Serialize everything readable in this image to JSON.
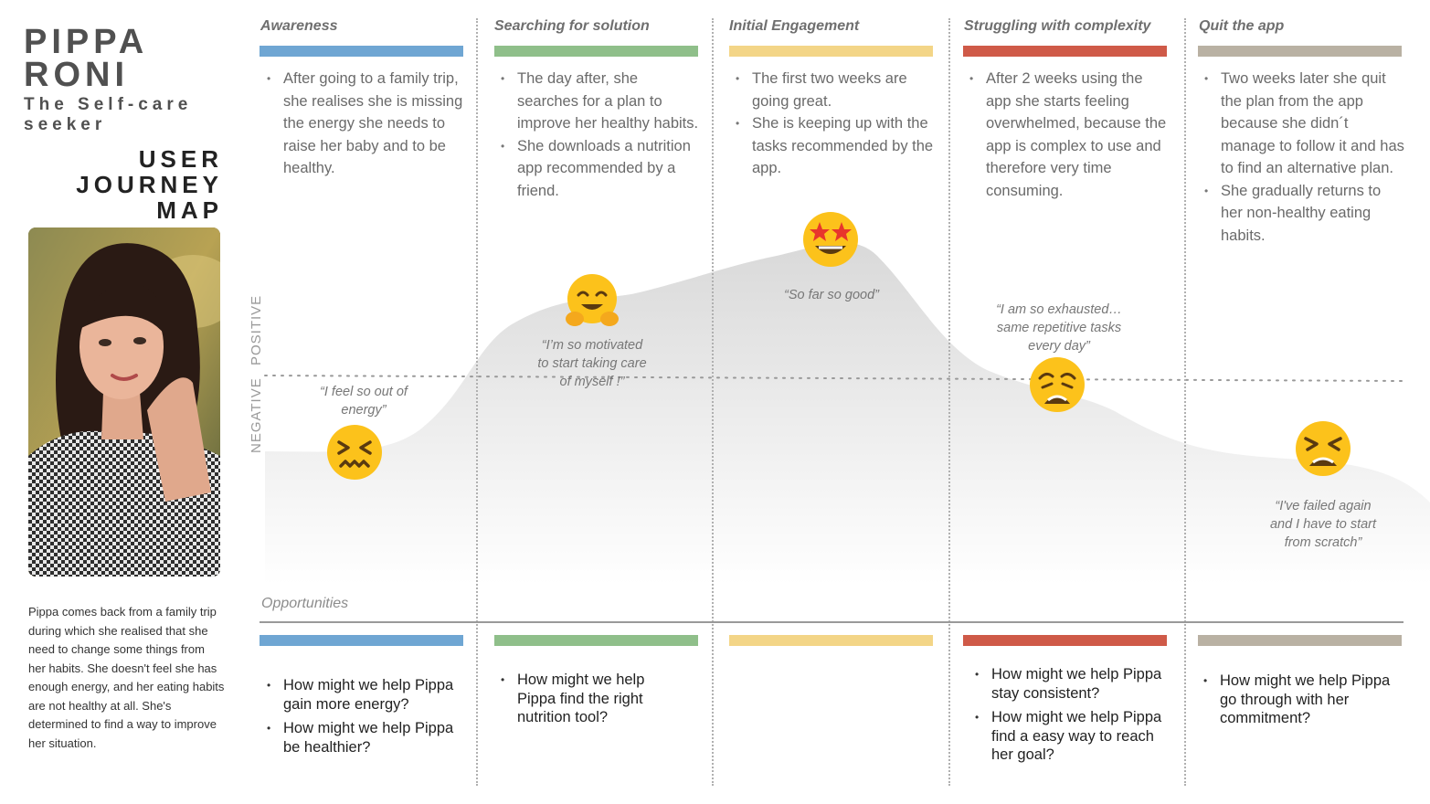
{
  "persona": {
    "first_name": "PIPPA",
    "last_name": "RONI",
    "subtitle_line1": "The Self-care",
    "subtitle_line2": "seeker",
    "map_title_line1": "USER",
    "map_title_line2": "JOURNEY",
    "map_title_line3": "MAP",
    "bio": "Pippa comes back from a family trip during which she realised that she need to change some things from her habits. She doesn't feel she has enough energy, and her eating habits are not healthy at all. She's determined to find a way to improve her situation."
  },
  "stages": [
    {
      "title": "Awareness",
      "color": "#6fa6d3",
      "bullets": [
        "After going to a family trip, she realises she is missing the energy she needs to raise her baby and to be healthy."
      ],
      "quote": "“I feel so out of\nenergy”",
      "emoji": "confounded-face-icon",
      "opportunities": [
        "How might we help Pippa gain more energy?",
        "How might we help Pippa be healthier?"
      ]
    },
    {
      "title": "Searching for solution",
      "color": "#8fbf8a",
      "bullets": [
        "The day after, she searches for a plan to improve her healthy habits.",
        "She downloads a nutrition app recommended by a friend."
      ],
      "quote": "“I’m so motivated\nto start taking care\nof myself !”",
      "emoji": "hugging-face-icon",
      "opportunities": [
        "How might we help Pippa find the right nutrition tool?"
      ]
    },
    {
      "title": "Initial Engagement",
      "color": "#f3d587",
      "bullets": [
        "The first two weeks are going great.",
        "She is keeping up with the tasks recommended by the app."
      ],
      "quote": "“So far so good”",
      "emoji": "star-struck-icon",
      "opportunities": []
    },
    {
      "title": "Struggling with complexity",
      "color": "#cf5a48",
      "bullets": [
        "After 2 weeks using the app she starts feeling overwhelmed, because the app is complex to use and therefore very time consuming."
      ],
      "quote": "“I am so exhausted…\nsame repetitive tasks\nevery day”",
      "emoji": "weary-face-icon",
      "opportunities": [
        "How might we help Pippa stay consistent?",
        "How might we help Pippa find a easy way to reach her goal?"
      ]
    },
    {
      "title": "Quit the app",
      "color": "#b9b1a3",
      "bullets": [
        "Two weeks later she quit the plan from the app because she didn´t manage to follow it and has to find an alternative plan.",
        "She gradually returns to her non-healthy eating habits."
      ],
      "quote": "“I've failed again\nand I have to start\nfrom scratch”",
      "emoji": "tired-face-icon",
      "opportunities": [
        "How might we help Pippa go through with her commitment?"
      ]
    }
  ],
  "axis": {
    "positive_label": "POSITIVE",
    "negative_label": "NEGATIVE"
  },
  "opportunities_label": "Opportunities"
}
